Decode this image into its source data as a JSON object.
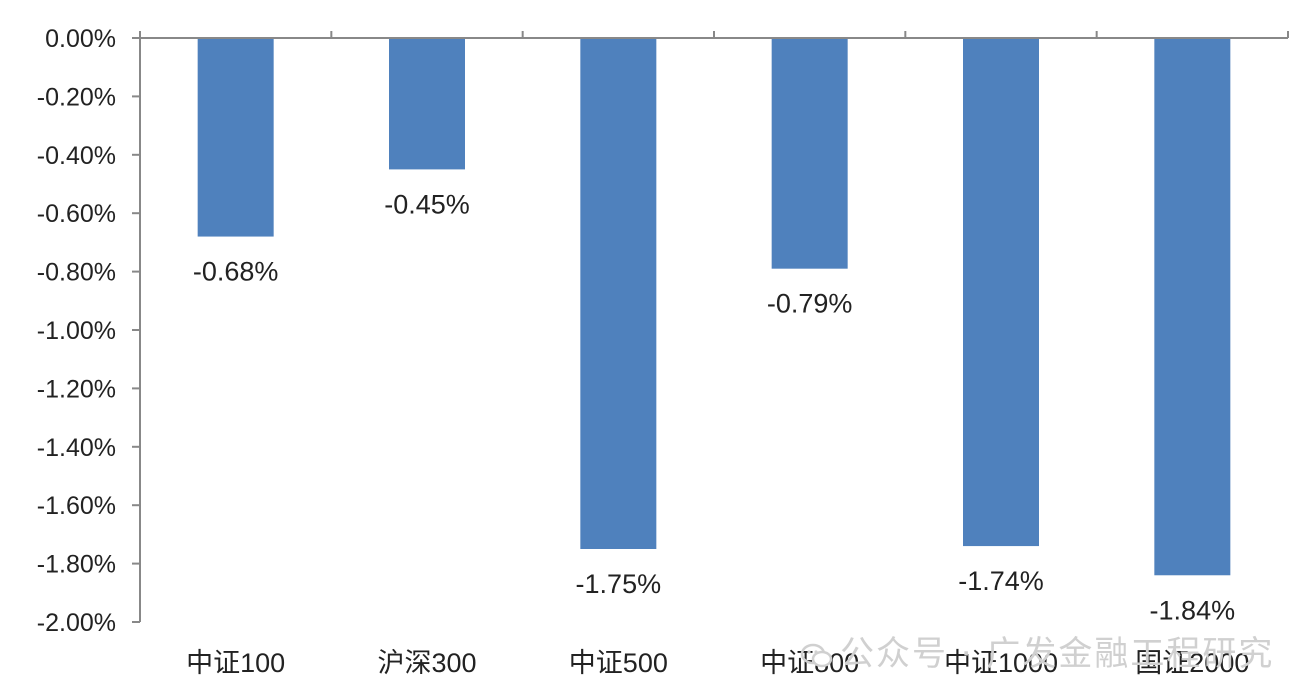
{
  "chart_data": {
    "type": "bar",
    "categories": [
      "中证100",
      "沪深300",
      "中证500",
      "中证800",
      "中证1000",
      "国证2000"
    ],
    "values": [
      -0.68,
      -0.45,
      -1.75,
      -0.79,
      -1.74,
      -1.84
    ],
    "data_labels": [
      "-0.68%",
      "-0.45%",
      "-1.75%",
      "-0.79%",
      "-1.74%",
      "-1.84%"
    ],
    "ylim": [
      -2.0,
      0.0
    ],
    "yticks": [
      0.0,
      -0.2,
      -0.4,
      -0.6,
      -0.8,
      -1.0,
      -1.2,
      -1.4,
      -1.6,
      -1.8,
      -2.0
    ],
    "ytick_labels": [
      "0.00%",
      "-0.20%",
      "-0.40%",
      "-0.60%",
      "-0.80%",
      "-1.00%",
      "-1.20%",
      "-1.40%",
      "-1.60%",
      "-1.80%",
      "-2.00%"
    ],
    "bar_color": "#4f81bd",
    "axis_color": "#888888",
    "grid": false,
    "legend": "none",
    "title": "",
    "xlabel": "",
    "ylabel": ""
  },
  "watermark": {
    "text": "公众号 · 广发金融工程研究",
    "icon": "wechat-icon"
  }
}
